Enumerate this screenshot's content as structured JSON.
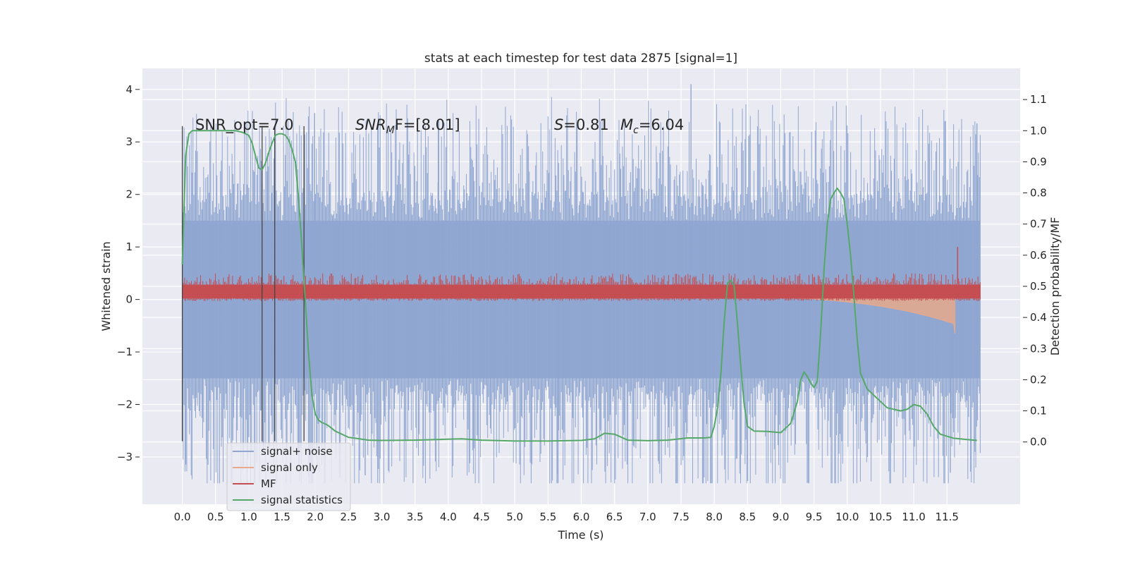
{
  "chart_data": {
    "type": "line",
    "title": "stats at each timestep for test data 2875 [signal=1]",
    "xlabel": "Time (s)",
    "ylabel_left": "Whitened strain",
    "ylabel_right": "Detection probability/MF",
    "xlim": [
      -0.6,
      12.6
    ],
    "ylim_left": [
      -3.9,
      4.4
    ],
    "ylim_right": [
      -0.2,
      1.2
    ],
    "grid": true,
    "legend_position": "lower-left",
    "x_ticks": [
      "0.0",
      "0.5",
      "1.0",
      "1.5",
      "2.0",
      "2.5",
      "3.0",
      "3.5",
      "4.0",
      "4.5",
      "5.0",
      "5.5",
      "6.0",
      "6.5",
      "7.0",
      "7.5",
      "8.0",
      "8.5",
      "9.0",
      "9.5",
      "10.0",
      "10.5",
      "11.0",
      "11.5"
    ],
    "y_ticks_left": [
      "4",
      "3",
      "2",
      "1",
      "0",
      "−1",
      "−2",
      "−3"
    ],
    "y_ticks_right": [
      "1.1",
      "1.0",
      "0.9",
      "0.8",
      "0.7",
      "0.6",
      "0.5",
      "0.4",
      "0.3",
      "0.2",
      "0.1",
      "0.0"
    ],
    "annotations": {
      "snr_opt": "SNR_opt=7.0",
      "snr_mf_label": "SNR",
      "snr_mf_sub": "M",
      "snr_mf_rest": "F=[8.01]",
      "s_label": "S",
      "s_rest": "=0.81",
      "mc_label": "M",
      "mc_sub": "c",
      "mc_rest": "=6.04"
    },
    "vertical_markers_x": [
      0.0,
      1.2,
      1.39,
      1.83
    ],
    "series": [
      {
        "name": "signal+ noise",
        "color": "#8fa6d1",
        "x_range": [
          0.0,
          12.0
        ],
        "envelope": [
          -1.5,
          1.5
        ],
        "spike_range": [
          -3.5,
          4.1
        ]
      },
      {
        "name": "signal only",
        "color": "#e8a98c",
        "x_range": [
          0.0,
          11.62
        ]
      },
      {
        "name": "MF",
        "color": "#c44e52",
        "x_range": [
          0.0,
          12.0
        ],
        "band": [
          0.0,
          0.5
        ]
      },
      {
        "name": "signal statistics",
        "color": "#55a868",
        "x": [
          0.0,
          0.05,
          0.1,
          0.15,
          0.2,
          0.3,
          0.4,
          0.5,
          0.6,
          0.7,
          0.8,
          0.9,
          1.0,
          1.05,
          1.1,
          1.15,
          1.2,
          1.25,
          1.3,
          1.35,
          1.4,
          1.45,
          1.5,
          1.55,
          1.6,
          1.65,
          1.7,
          1.75,
          1.8,
          1.85,
          1.9,
          1.95,
          2.0,
          2.05,
          2.1,
          2.15,
          2.2,
          2.3,
          2.5,
          2.8,
          3.0,
          3.5,
          4.0,
          4.2,
          4.5,
          5.0,
          5.5,
          6.0,
          6.2,
          6.35,
          6.5,
          6.7,
          7.0,
          7.3,
          7.6,
          7.85,
          7.95,
          8.0,
          8.05,
          8.1,
          8.15,
          8.2,
          8.25,
          8.3,
          8.35,
          8.4,
          8.45,
          8.5,
          8.6,
          8.8,
          9.0,
          9.15,
          9.25,
          9.3,
          9.35,
          9.4,
          9.45,
          9.5,
          9.55,
          9.6,
          9.65,
          9.7,
          9.75,
          9.8,
          9.85,
          9.9,
          9.95,
          10.0,
          10.05,
          10.1,
          10.15,
          10.2,
          10.3,
          10.4,
          10.5,
          10.6,
          10.8,
          10.9,
          11.0,
          11.1,
          11.2,
          11.3,
          11.4,
          11.6,
          11.8,
          11.95
        ],
        "y": [
          0.57,
          0.92,
          0.99,
          1.0,
          1.0,
          1.0,
          1.0,
          1.0,
          1.0,
          1.0,
          1.0,
          0.995,
          0.985,
          0.96,
          0.92,
          0.88,
          0.875,
          0.895,
          0.93,
          0.96,
          0.985,
          0.99,
          0.99,
          0.985,
          0.97,
          0.94,
          0.9,
          0.78,
          0.62,
          0.45,
          0.28,
          0.15,
          0.09,
          0.07,
          0.062,
          0.058,
          0.052,
          0.035,
          0.015,
          0.006,
          0.005,
          0.006,
          0.009,
          0.01,
          0.006,
          0.003,
          0.003,
          0.005,
          0.01,
          0.028,
          0.025,
          0.006,
          0.004,
          0.006,
          0.013,
          0.013,
          0.015,
          0.05,
          0.11,
          0.22,
          0.39,
          0.51,
          0.52,
          0.5,
          0.38,
          0.24,
          0.12,
          0.05,
          0.035,
          0.034,
          0.03,
          0.06,
          0.13,
          0.2,
          0.225,
          0.21,
          0.19,
          0.175,
          0.195,
          0.35,
          0.55,
          0.7,
          0.78,
          0.8,
          0.815,
          0.8,
          0.78,
          0.7,
          0.6,
          0.47,
          0.33,
          0.22,
          0.17,
          0.15,
          0.13,
          0.11,
          0.1,
          0.105,
          0.12,
          0.115,
          0.09,
          0.05,
          0.025,
          0.012,
          0.008,
          0.005
        ]
      }
    ]
  }
}
